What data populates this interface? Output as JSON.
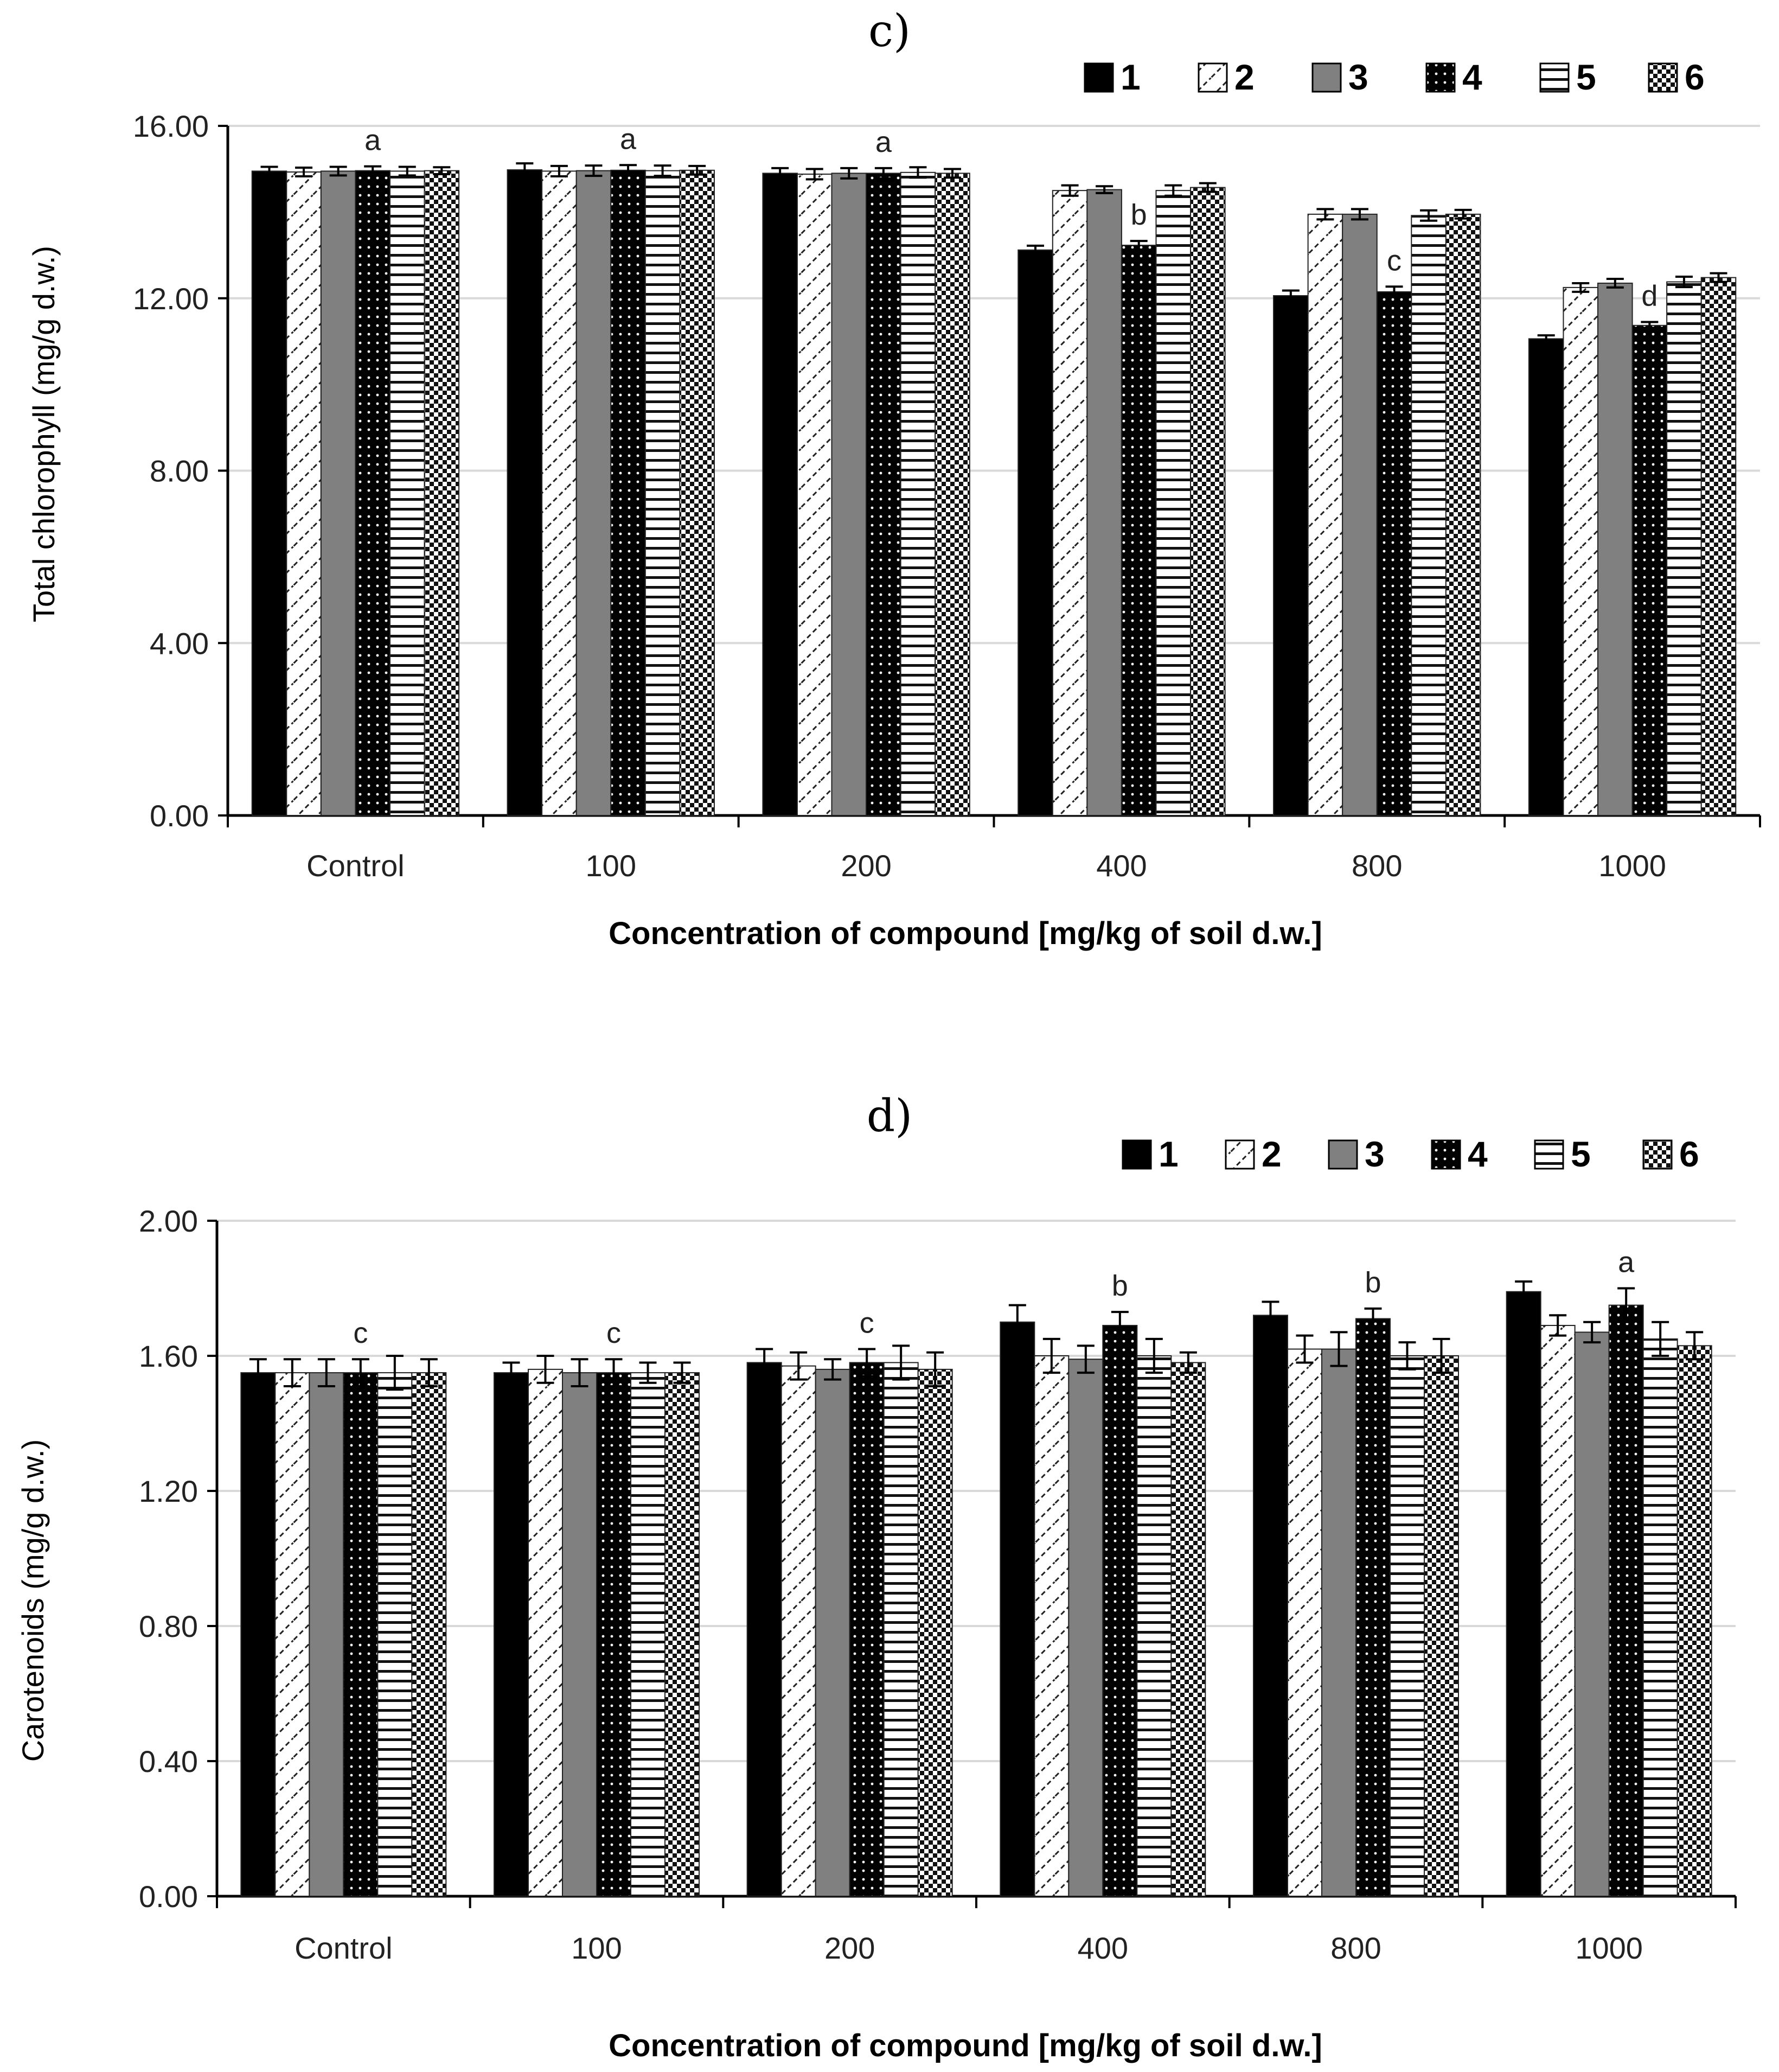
{
  "chart_data": [
    {
      "type": "bar",
      "panel_label": "c)",
      "title": "",
      "xlabel": "Concentration of compound [mg/kg of soil d.w.]",
      "ylabel": "Total chlorophyll (mg/g d.w.)",
      "ylim": [
        0,
        16
      ],
      "yticks": [
        "0.00",
        "4.00",
        "8.00",
        "12.00",
        "16.00"
      ],
      "grid": true,
      "legend_position": "top-right",
      "categories": [
        "Control",
        "100",
        "200",
        "400",
        "800",
        "1000"
      ],
      "series": [
        {
          "name": "1",
          "values": [
            14.95,
            14.98,
            14.9,
            13.12,
            12.06,
            11.06
          ],
          "errors": [
            0.1,
            0.15,
            0.12,
            0.1,
            0.12,
            0.08
          ]
        },
        {
          "name": "2",
          "values": [
            14.93,
            14.95,
            14.88,
            14.5,
            13.95,
            12.25
          ],
          "errors": [
            0.1,
            0.12,
            0.12,
            0.12,
            0.12,
            0.1
          ]
        },
        {
          "name": "3",
          "values": [
            14.95,
            14.96,
            14.9,
            14.52,
            13.95,
            12.35
          ],
          "errors": [
            0.1,
            0.12,
            0.12,
            0.08,
            0.12,
            0.1
          ]
        },
        {
          "name": "4",
          "values": [
            14.96,
            14.97,
            14.9,
            13.23,
            12.15,
            11.37
          ],
          "errors": [
            0.1,
            0.12,
            0.12,
            0.1,
            0.12,
            0.08
          ]
        },
        {
          "name": "5",
          "values": [
            14.95,
            14.96,
            14.92,
            14.5,
            13.92,
            12.38
          ],
          "errors": [
            0.1,
            0.12,
            0.12,
            0.12,
            0.12,
            0.12
          ]
        },
        {
          "name": "6",
          "values": [
            14.96,
            14.97,
            14.9,
            14.57,
            13.95,
            12.48
          ],
          "errors": [
            0.08,
            0.1,
            0.1,
            0.1,
            0.1,
            0.1
          ]
        }
      ],
      "annotations": [
        "a",
        "a",
        "a",
        "b",
        "c",
        "d"
      ]
    },
    {
      "type": "bar",
      "panel_label": "d)",
      "title": "",
      "xlabel": "Concentration of compound [mg/kg of soil d.w.]",
      "ylabel": "Carotenoids (mg/g d.w.)",
      "ylim": [
        0,
        2
      ],
      "yticks": [
        "0.00",
        "0.40",
        "0.80",
        "1.20",
        "1.60",
        "2.00"
      ],
      "grid": true,
      "legend_position": "top-right",
      "categories": [
        "Control",
        "100",
        "200",
        "400",
        "800",
        "1000"
      ],
      "series": [
        {
          "name": "1",
          "values": [
            1.55,
            1.55,
            1.58,
            1.7,
            1.72,
            1.79
          ],
          "errors": [
            0.04,
            0.03,
            0.04,
            0.05,
            0.04,
            0.03
          ]
        },
        {
          "name": "2",
          "values": [
            1.55,
            1.56,
            1.57,
            1.6,
            1.62,
            1.69
          ],
          "errors": [
            0.04,
            0.04,
            0.04,
            0.05,
            0.04,
            0.03
          ]
        },
        {
          "name": "3",
          "values": [
            1.55,
            1.55,
            1.56,
            1.59,
            1.62,
            1.67
          ],
          "errors": [
            0.04,
            0.04,
            0.03,
            0.04,
            0.05,
            0.03
          ]
        },
        {
          "name": "4",
          "values": [
            1.55,
            1.55,
            1.58,
            1.69,
            1.71,
            1.75
          ],
          "errors": [
            0.04,
            0.04,
            0.04,
            0.04,
            0.03,
            0.05
          ]
        },
        {
          "name": "5",
          "values": [
            1.55,
            1.55,
            1.58,
            1.6,
            1.6,
            1.65
          ],
          "errors": [
            0.05,
            0.03,
            0.05,
            0.05,
            0.04,
            0.05
          ]
        },
        {
          "name": "6",
          "values": [
            1.55,
            1.55,
            1.56,
            1.58,
            1.6,
            1.63
          ],
          "errors": [
            0.04,
            0.03,
            0.05,
            0.03,
            0.05,
            0.04
          ]
        }
      ],
      "annotations": [
        "c",
        "c",
        "c",
        "b",
        "b",
        "a"
      ]
    }
  ]
}
